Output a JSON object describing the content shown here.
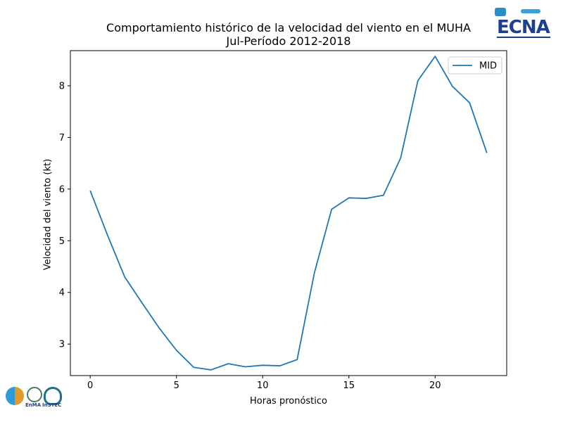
{
  "chart_data": {
    "type": "line",
    "title": "Comportamiento histórico de la velocidad del viento en el MUHA",
    "subtitle": "Jul-Período 2012-2018",
    "xlabel": "Horas pronóstico",
    "ylabel": "Velocidad del viento (kt)",
    "xlim": [
      -1.15,
      24.15
    ],
    "ylim": [
      2.39,
      8.68
    ],
    "xticks": [
      0,
      5,
      10,
      15,
      20
    ],
    "yticks": [
      3,
      4,
      5,
      6,
      7,
      8
    ],
    "grid": false,
    "legend_position": "top-right",
    "series": [
      {
        "name": "MID",
        "color": "#1f77b4",
        "x": [
          0,
          1,
          2,
          3,
          4,
          5,
          6,
          7,
          8,
          9,
          10,
          11,
          12,
          13,
          14,
          15,
          16,
          17,
          18,
          19,
          20,
          21,
          22,
          23
        ],
        "values": [
          5.97,
          5.11,
          4.3,
          3.8,
          3.31,
          2.88,
          2.55,
          2.5,
          2.62,
          2.56,
          2.59,
          2.58,
          2.7,
          4.38,
          5.61,
          5.83,
          5.82,
          5.88,
          6.6,
          8.1,
          8.57,
          7.99,
          7.67,
          6.7
        ]
      }
    ]
  },
  "logos": {
    "top_right": "ECNA",
    "bottom_left": [
      "EnMA",
      "InSTEC"
    ]
  }
}
